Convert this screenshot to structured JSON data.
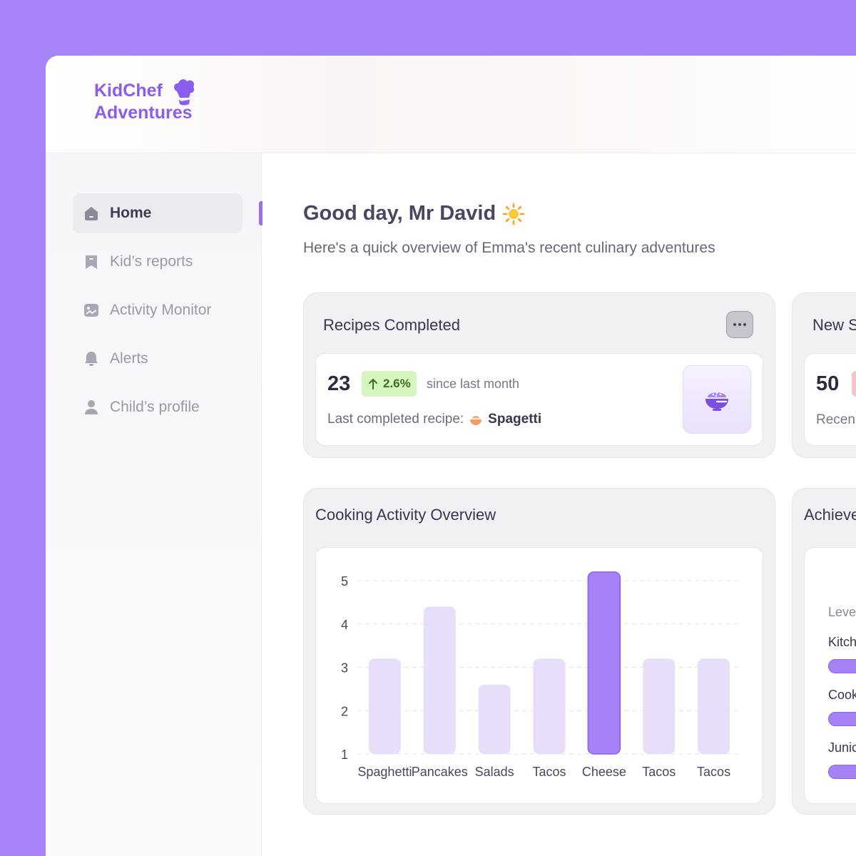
{
  "brand": {
    "line1": "KidChef",
    "line2": "Adventures"
  },
  "nav": [
    {
      "label": "Home",
      "icon": "home-icon",
      "active": true
    },
    {
      "label": "Kid’s reports",
      "icon": "bookmark-icon",
      "active": false
    },
    {
      "label": "Activity Monitor",
      "icon": "image-icon",
      "active": false
    },
    {
      "label": "Alerts",
      "icon": "bell-icon",
      "active": false
    },
    {
      "label": "Child’s profile",
      "icon": "user-icon",
      "active": false
    }
  ],
  "header": {
    "greeting": "Good day, Mr David",
    "subtitle": "Here's a quick overview of Emma's recent culinary adventures"
  },
  "recipes_card": {
    "title": "Recipes Completed",
    "count": "23",
    "trend": "2.6%",
    "trend_note": "since last month",
    "last_label": "Last completed recipe:",
    "last_recipe": "Spagetti"
  },
  "second_card": {
    "title": "New S",
    "count": "50",
    "note": "Recen"
  },
  "achievements_card": {
    "title": "Achieve",
    "level": "Leve",
    "items": [
      "Kitch",
      "Cook",
      "Junic"
    ]
  },
  "chart_data": {
    "type": "bar",
    "title": "Cooking Activity Overview",
    "categories": [
      "Spaghetti",
      "Pancakes",
      "Salads",
      "Tacos",
      "Cheese",
      "Tacos",
      "Tacos"
    ],
    "values": [
      3.2,
      4.4,
      2.6,
      3.2,
      5.2,
      3.2,
      3.2
    ],
    "highlight_index": 4,
    "ylim": [
      1,
      5
    ],
    "yticks": [
      1,
      2,
      3,
      4,
      5
    ],
    "grid": true,
    "colors": {
      "bar": "#e7dffa",
      "highlight": "#a582f6",
      "highlight_border": "#8c5ff0"
    }
  },
  "colors": {
    "accent": "#9b6cf6",
    "background": "#a585f8",
    "trend_bg": "#d5f5bf"
  }
}
